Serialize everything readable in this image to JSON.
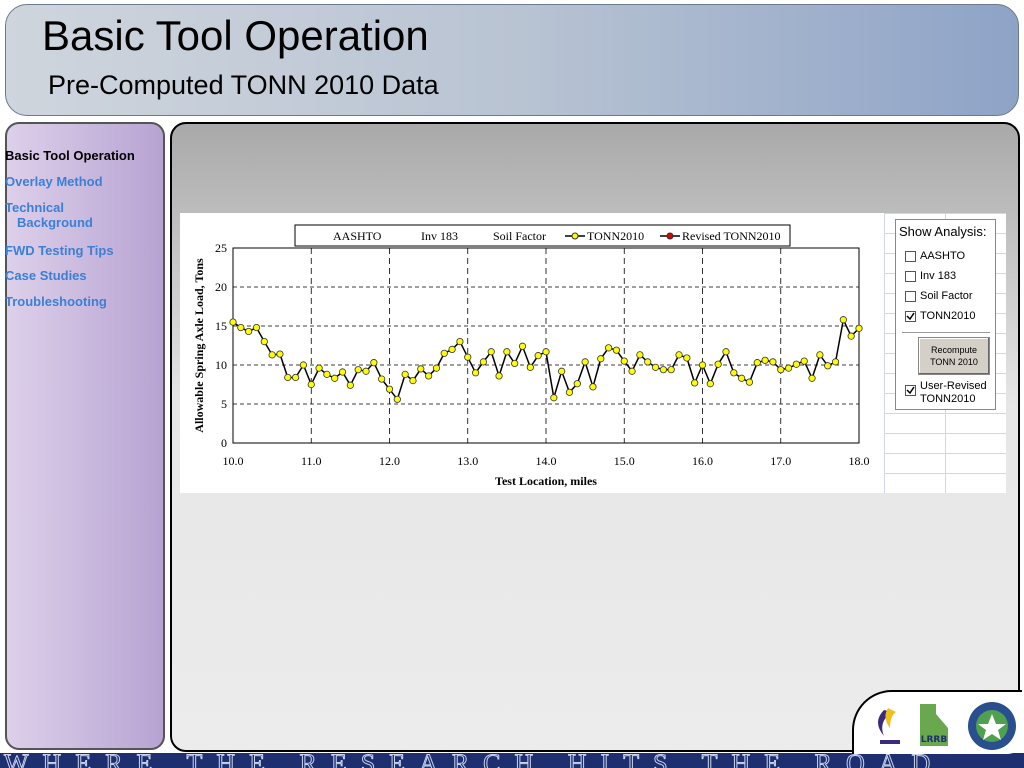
{
  "header": {
    "title": "Basic Tool Operation",
    "subtitle": "Pre-Computed TONN 2010 Data"
  },
  "nav": {
    "items": [
      "Basic Tool Operation",
      "Overlay Method",
      "Technical Background",
      "FWD Testing Tips",
      "Case Studies",
      "Troubleshooting"
    ]
  },
  "chart_data": {
    "type": "line",
    "legend_labels": [
      "AASHTO",
      "Inv 183",
      "Soil Factor"
    ],
    "extra_legend": {
      "name": "Revised TONN2010",
      "color": "#e00000"
    },
    "xlabel": "Test Location, miles",
    "ylabel": "Allowable  Spring  Axle Load, Tons",
    "x": [
      10.0,
      10.1,
      10.2,
      10.3,
      10.4,
      10.5,
      10.6,
      10.7,
      10.8,
      10.9,
      11.0,
      11.1,
      11.2,
      11.3,
      11.4,
      11.5,
      11.6,
      11.7,
      11.8,
      11.9,
      12.0,
      12.1,
      12.2,
      12.3,
      12.4,
      12.5,
      12.6,
      12.7,
      12.8,
      12.9,
      13.0,
      13.1,
      13.2,
      13.3,
      13.4,
      13.5,
      13.6,
      13.7,
      13.8,
      13.9,
      14.0,
      14.1,
      14.2,
      14.3,
      14.4,
      14.5,
      14.6,
      14.7,
      14.8,
      14.9,
      15.0,
      15.1,
      15.2,
      15.3,
      15.4,
      15.5,
      15.6,
      15.7,
      15.8,
      15.9,
      16.0,
      16.1,
      16.2,
      16.3,
      16.4,
      16.5,
      16.6,
      16.7,
      16.8,
      16.9,
      17.0,
      17.1,
      17.2,
      17.3,
      17.4,
      17.5,
      17.6,
      17.7,
      17.8,
      17.9,
      18.0
    ],
    "series": [
      {
        "name": "TONN2010",
        "color": "#ffff00",
        "values": [
          15.5,
          14.8,
          14.3,
          14.8,
          13.0,
          11.3,
          11.4,
          8.4,
          8.4,
          10.0,
          7.5,
          9.6,
          8.8,
          8.3,
          9.1,
          7.4,
          9.4,
          9.2,
          10.3,
          8.2,
          6.9,
          5.6,
          8.8,
          8.0,
          9.5,
          8.6,
          9.6,
          11.5,
          12.0,
          13.0,
          11.0,
          9.0,
          10.4,
          11.7,
          8.6,
          11.7,
          10.2,
          12.4,
          9.7,
          11.2,
          11.7,
          5.8,
          9.2,
          6.5,
          7.6,
          10.4,
          7.2,
          10.8,
          12.2,
          11.9,
          10.5,
          9.2,
          11.3,
          10.4,
          9.7,
          9.4,
          9.4,
          11.3,
          10.9,
          7.7,
          10.0,
          7.6,
          10.1,
          11.7,
          9.0,
          8.3,
          7.8,
          10.3,
          10.6,
          10.4,
          9.4,
          9.6,
          10.1,
          10.5,
          8.3,
          11.3,
          9.9,
          10.4,
          15.8,
          13.7,
          14.7
        ]
      }
    ],
    "xlim": [
      10,
      18
    ],
    "xticks": [
      {
        "value": 10,
        "label": "10.0"
      },
      {
        "value": 11,
        "label": "11.0"
      },
      {
        "value": 12,
        "label": "12.0"
      },
      {
        "value": 13,
        "label": "13.0"
      },
      {
        "value": 14,
        "label": "14.0"
      },
      {
        "value": 15,
        "label": "15.0"
      },
      {
        "value": 16,
        "label": "16.0"
      },
      {
        "value": 17,
        "label": "17.0"
      },
      {
        "value": 18,
        "label": "18.0"
      }
    ],
    "ylim": [
      0,
      25
    ],
    "yticks": [
      0,
      5,
      10,
      15,
      20,
      25
    ],
    "grid": true
  },
  "panel": {
    "title": "Show Analysis:",
    "options": [
      {
        "label": "AASHTO",
        "checked": false
      },
      {
        "label": "Inv 183",
        "checked": false
      },
      {
        "label": "Soil Factor",
        "checked": false
      },
      {
        "label": "TONN2010",
        "checked": true
      }
    ],
    "button": "Recompute TONN 2010",
    "revised": {
      "label": "User-Revised TONN2010",
      "checked": true
    }
  },
  "footer": {
    "banner": "WHERE THE RESEARCH HITS THE ROAD",
    "logo": "LRRB"
  }
}
